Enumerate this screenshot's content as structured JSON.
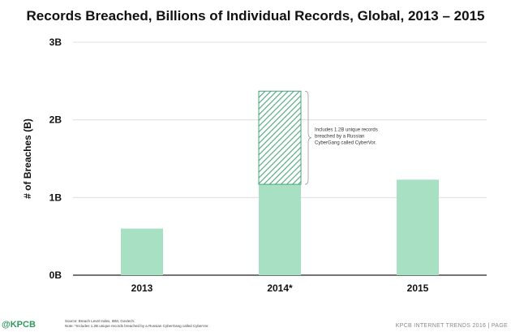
{
  "chart_data": {
    "type": "bar",
    "title": "Records Breached, Billions of Individual Records, Global, 2013 – 2015",
    "ylabel": "# of Breaches (B)",
    "xlabel": "",
    "categories": [
      "2013",
      "2014*",
      "2015"
    ],
    "ylim": [
      0,
      3
    ],
    "yticks": [
      0,
      1,
      2,
      3
    ],
    "ytick_labels": [
      "0B",
      "1B",
      "2B",
      "3B"
    ],
    "grid": true,
    "series": [
      {
        "values": [
          0.6,
          1.17,
          1.23
        ],
        "color": "#a8e0c4",
        "pattern": "solid"
      },
      {
        "values": [
          0,
          1.2,
          0
        ],
        "color": "#4aa57a",
        "pattern": "hatched"
      }
    ],
    "annotation": {
      "category": "2014*",
      "text": [
        "Includes 1.2B unique records",
        "breached by a Russian",
        "CyberGang called CyberVor."
      ]
    }
  },
  "source_lines": [
    "Source: Breach Level Index, IBM, Govtech.",
    "Note: *Includes 1.2B unique records breached by a Russian CyberGang called CyberVor."
  ],
  "logo_text": "@KPCB",
  "footer_text": "KPCB INTERNET TRENDS 2016  |  PAGE"
}
